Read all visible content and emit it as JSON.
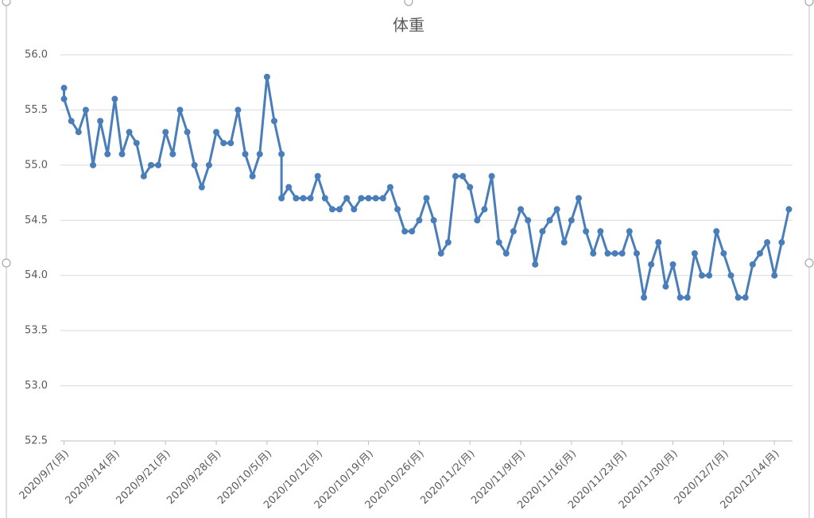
{
  "chart_data": {
    "type": "line",
    "title": "体重",
    "color": "#4a7ebb",
    "grid": true,
    "x": [
      "2020-09-07",
      "2020-09-07",
      "2020-09-08",
      "2020-09-09",
      "2020-09-10",
      "2020-09-11",
      "2020-09-12",
      "2020-09-13",
      "2020-09-14",
      "2020-09-15",
      "2020-09-16",
      "2020-09-17",
      "2020-09-18",
      "2020-09-19",
      "2020-09-20",
      "2020-09-21",
      "2020-09-22",
      "2020-09-23",
      "2020-09-24",
      "2020-09-25",
      "2020-09-26",
      "2020-09-27",
      "2020-09-28",
      "2020-09-29",
      "2020-09-30",
      "2020-10-01",
      "2020-10-02",
      "2020-10-03",
      "2020-10-04",
      "2020-10-05",
      "2020-10-06",
      "2020-10-07",
      "2020-10-07",
      "2020-10-08",
      "2020-10-09",
      "2020-10-10",
      "2020-10-11",
      "2020-10-12",
      "2020-10-13",
      "2020-10-14",
      "2020-10-15",
      "2020-10-16",
      "2020-10-17",
      "2020-10-18",
      "2020-10-19",
      "2020-10-20",
      "2020-10-21",
      "2020-10-22",
      "2020-10-23",
      "2020-10-24",
      "2020-10-25",
      "2020-10-26",
      "2020-10-27",
      "2020-10-28",
      "2020-10-29",
      "2020-10-30",
      "2020-10-31",
      "2020-11-01",
      "2020-11-02",
      "2020-11-03",
      "2020-11-04",
      "2020-11-05",
      "2020-11-06",
      "2020-11-07",
      "2020-11-08",
      "2020-11-09",
      "2020-11-10",
      "2020-11-11",
      "2020-11-12",
      "2020-11-13",
      "2020-11-14",
      "2020-11-15",
      "2020-11-16",
      "2020-11-17",
      "2020-11-18",
      "2020-11-19",
      "2020-11-20",
      "2020-11-21",
      "2020-11-22",
      "2020-11-23",
      "2020-11-24",
      "2020-11-25",
      "2020-11-26",
      "2020-11-27",
      "2020-11-28",
      "2020-11-29",
      "2020-11-30",
      "2020-12-01",
      "2020-12-02",
      "2020-12-03",
      "2020-12-04",
      "2020-12-05",
      "2020-12-06",
      "2020-12-07",
      "2020-12-08",
      "2020-12-09",
      "2020-12-10",
      "2020-12-11",
      "2020-12-12",
      "2020-12-13",
      "2020-12-14",
      "2020-12-15",
      "2020-12-16"
    ],
    "values": [
      55.7,
      55.6,
      55.4,
      55.3,
      55.5,
      55.0,
      55.4,
      55.1,
      55.6,
      55.1,
      55.3,
      55.2,
      54.9,
      55.0,
      55.0,
      55.3,
      55.1,
      55.5,
      55.3,
      55.0,
      54.8,
      55.0,
      55.3,
      55.2,
      55.2,
      55.5,
      55.1,
      54.9,
      55.1,
      55.8,
      55.4,
      55.1,
      54.7,
      54.8,
      54.7,
      54.7,
      54.7,
      54.9,
      54.7,
      54.6,
      54.6,
      54.7,
      54.6,
      54.7,
      54.7,
      54.7,
      54.7,
      54.8,
      54.6,
      54.4,
      54.4,
      54.5,
      54.7,
      54.5,
      54.2,
      54.3,
      54.9,
      54.9,
      54.8,
      54.5,
      54.6,
      54.9,
      54.3,
      54.2,
      54.4,
      54.6,
      54.5,
      54.1,
      54.4,
      54.5,
      54.6,
      54.3,
      54.5,
      54.7,
      54.4,
      54.2,
      54.4,
      54.2,
      54.2,
      54.2,
      54.4,
      54.2,
      53.8,
      54.1,
      54.3,
      53.9,
      54.1,
      53.8,
      53.8,
      54.2,
      54.0,
      54.0,
      54.4,
      54.2,
      54.0,
      53.8,
      53.8,
      54.1,
      54.2,
      54.3,
      54.0,
      54.3,
      54.6
    ],
    "xlim": [
      "2020-09-06T12:00",
      "2020-12-16T12:00"
    ],
    "xticks": [
      {
        "value": "2020-09-07",
        "label": "2020/9/7(月)"
      },
      {
        "value": "2020-09-14",
        "label": "2020/9/14(月)"
      },
      {
        "value": "2020-09-21",
        "label": "2020/9/21(月)"
      },
      {
        "value": "2020-09-28",
        "label": "2020/9/28(月)"
      },
      {
        "value": "2020-10-05",
        "label": "2020/10/5(月)"
      },
      {
        "value": "2020-10-12",
        "label": "2020/10/12(月)"
      },
      {
        "value": "2020-10-19",
        "label": "2020/10/19(月)"
      },
      {
        "value": "2020-10-26",
        "label": "2020/10/26(月)"
      },
      {
        "value": "2020-11-02",
        "label": "2020/11/2(月)"
      },
      {
        "value": "2020-11-09",
        "label": "2020/11/9(月)"
      },
      {
        "value": "2020-11-16",
        "label": "2020/11/16(月)"
      },
      {
        "value": "2020-11-23",
        "label": "2020/11/23(月)"
      },
      {
        "value": "2020-11-30",
        "label": "2020/11/30(月)"
      },
      {
        "value": "2020-12-07",
        "label": "2020/12/7(月)"
      },
      {
        "value": "2020-12-14",
        "label": "2020/12/14(月)"
      }
    ],
    "ylim": [
      52.5,
      56.0
    ],
    "yticks": [
      52.5,
      {
        "value": 53,
        "label": "53.0"
      },
      53.5,
      {
        "value": 54,
        "label": "54.0"
      },
      54.5,
      {
        "value": 55,
        "label": "55.0"
      },
      55.5,
      {
        "value": 56,
        "label": "56.0"
      }
    ]
  }
}
